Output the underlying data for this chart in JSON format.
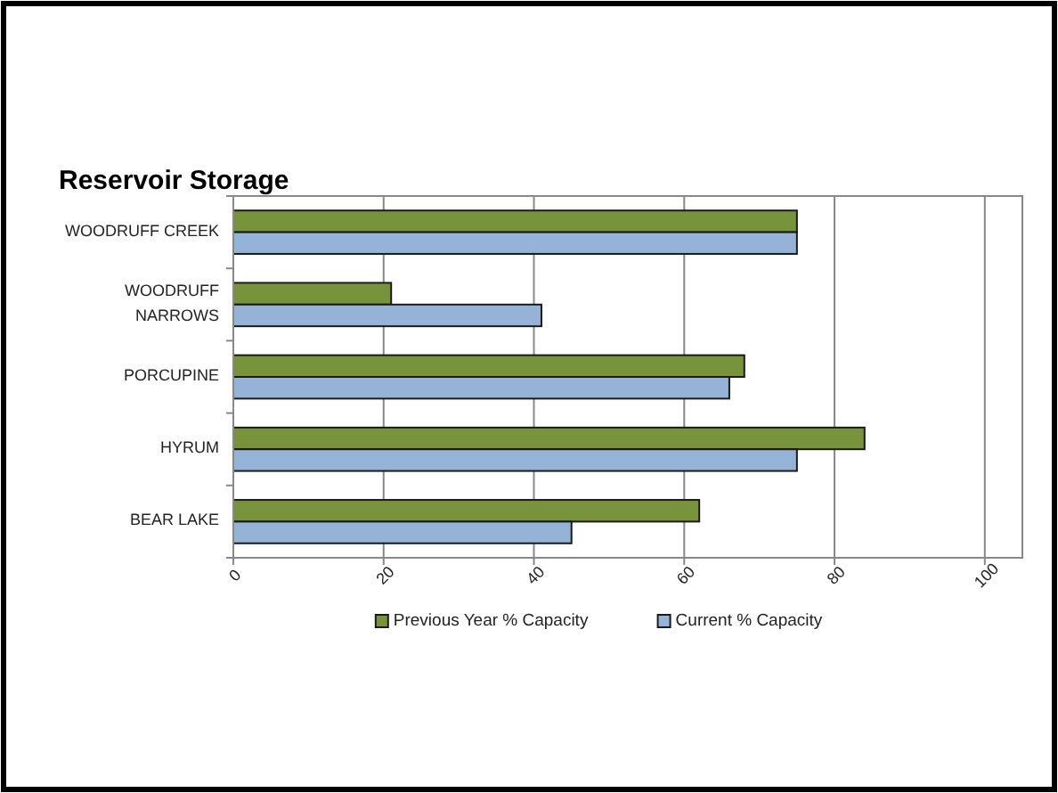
{
  "chart_data": {
    "type": "bar",
    "orientation": "horizontal",
    "title": "Reservoir Storage",
    "categories": [
      "WOODRUFF CREEK",
      "WOODRUFF NARROWS",
      "PORCUPINE",
      "HYRUM",
      "BEAR LAKE"
    ],
    "series": [
      {
        "name": "Previous Year % Capacity",
        "color": "#77933c",
        "values": [
          75,
          21,
          68,
          84,
          62
        ]
      },
      {
        "name": "Current % Capacity",
        "color": "#95b3d7",
        "values": [
          75,
          41,
          66,
          75,
          45
        ]
      }
    ],
    "xlim": [
      0,
      105
    ],
    "xticks": [
      0,
      20,
      40,
      60,
      80,
      100
    ],
    "grid": "x",
    "legend": "bottom"
  }
}
